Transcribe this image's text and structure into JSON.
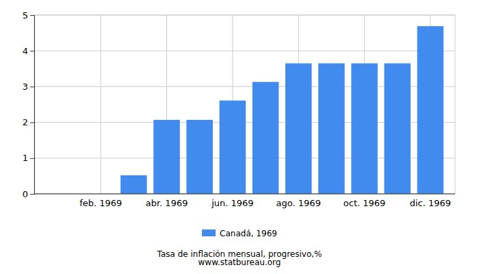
{
  "chart_data": {
    "type": "bar",
    "title": "Tasa de inflación mensual, progresivo,%",
    "subtitle": "www.statbureau.org",
    "categories": [
      null,
      "feb. 1969",
      null,
      "abr. 1969",
      null,
      "jun. 1969",
      null,
      "ago. 1969",
      null,
      "oct. 1969",
      null,
      "dic. 1969"
    ],
    "series": [
      {
        "name": "Canadá, 1969",
        "color": "#418bef",
        "values": [
          0,
          0,
          0.52,
          2.07,
          2.07,
          2.61,
          3.13,
          3.65,
          3.65,
          3.65,
          3.65,
          4.69
        ]
      }
    ],
    "ylim": [
      0,
      5
    ],
    "yticks": [
      0,
      1,
      2,
      3,
      4,
      5
    ],
    "grid": true,
    "legend": "bottom"
  }
}
